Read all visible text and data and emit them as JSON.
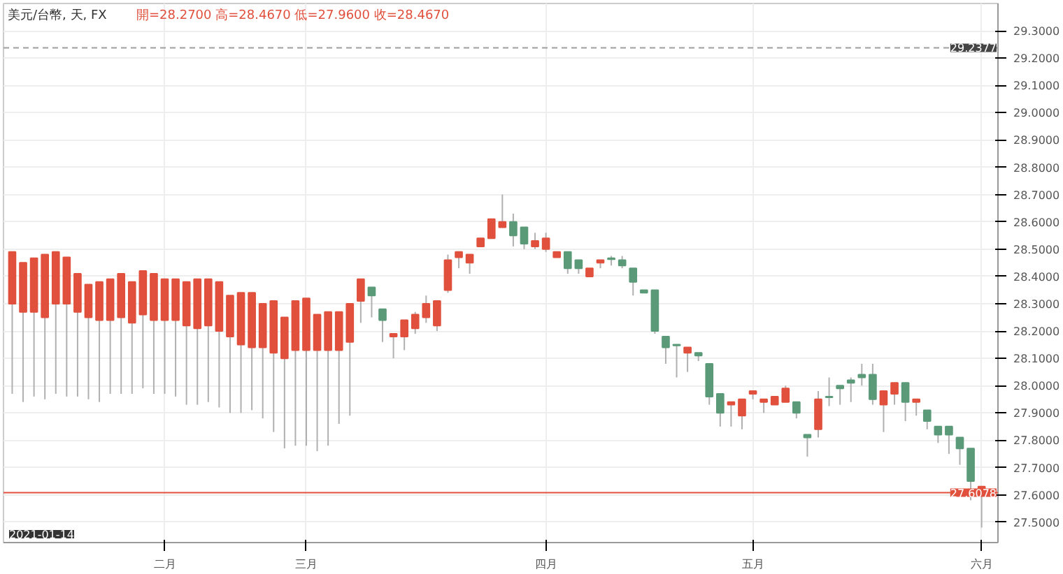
{
  "chart_data": {
    "type": "candlestick",
    "title": "美元/台幣, 天, FX",
    "subtitle": "開=28.2700 高=28.4670 低=27.9600 收=28.4670",
    "annotations": [
      "2021-01-14"
    ],
    "categories": [
      null,
      null,
      null,
      null,
      null,
      null,
      null,
      null,
      null,
      null,
      null,
      null,
      null,
      null,
      "二月",
      null,
      null,
      null,
      null,
      null,
      null,
      null,
      null,
      null,
      null,
      null,
      null,
      "三月",
      null,
      null,
      null,
      null,
      null,
      null,
      null,
      null,
      null,
      null,
      null,
      null,
      null,
      null,
      null,
      null,
      null,
      null,
      null,
      null,
      null,
      "四月",
      null,
      null,
      null,
      null,
      null,
      null,
      null,
      null,
      null,
      null,
      null,
      null,
      null,
      null,
      null,
      null,
      null,
      null,
      "五月",
      null,
      null,
      null,
      null,
      null,
      null,
      null,
      null,
      null,
      null,
      null,
      null,
      null,
      null,
      null,
      null,
      null,
      null,
      null,
      null,
      "六月"
    ],
    "ohlc": [
      [
        28.3,
        28.49,
        27.97,
        28.49
      ],
      [
        28.27,
        28.45,
        27.94,
        28.45
      ],
      [
        28.27,
        28.467,
        27.96,
        28.467
      ],
      [
        28.25,
        28.48,
        27.95,
        28.48
      ],
      [
        28.3,
        28.49,
        27.97,
        28.49
      ],
      [
        28.3,
        28.47,
        27.96,
        28.47
      ],
      [
        28.27,
        28.41,
        27.96,
        28.41
      ],
      [
        28.25,
        28.37,
        27.95,
        28.37
      ],
      [
        28.24,
        28.38,
        27.94,
        28.38
      ],
      [
        28.24,
        28.39,
        27.97,
        28.39
      ],
      [
        28.25,
        28.41,
        27.97,
        28.41
      ],
      [
        28.23,
        28.38,
        27.97,
        28.38
      ],
      [
        28.26,
        28.42,
        27.99,
        28.42
      ],
      [
        28.24,
        28.41,
        27.97,
        28.41
      ],
      [
        28.24,
        28.39,
        27.97,
        28.39
      ],
      [
        28.24,
        28.39,
        27.96,
        28.39
      ],
      [
        28.22,
        28.38,
        27.93,
        28.38
      ],
      [
        28.21,
        28.39,
        27.93,
        28.39
      ],
      [
        28.22,
        28.39,
        27.94,
        28.39
      ],
      [
        28.2,
        28.38,
        27.92,
        28.38
      ],
      [
        28.18,
        28.33,
        27.9,
        28.33
      ],
      [
        28.15,
        28.34,
        27.9,
        28.34
      ],
      [
        28.14,
        28.34,
        27.91,
        28.34
      ],
      [
        28.14,
        28.3,
        27.88,
        28.3
      ],
      [
        28.12,
        28.31,
        27.83,
        28.31
      ],
      [
        28.1,
        28.25,
        27.77,
        28.25
      ],
      [
        28.13,
        28.31,
        27.78,
        28.31
      ],
      [
        28.13,
        28.32,
        27.78,
        28.32
      ],
      [
        28.13,
        28.26,
        27.76,
        28.26
      ],
      [
        28.13,
        28.27,
        27.78,
        28.27
      ],
      [
        28.13,
        28.27,
        27.86,
        28.27
      ],
      [
        28.16,
        28.3,
        27.89,
        28.3
      ],
      [
        28.31,
        28.39,
        28.23,
        28.39
      ],
      [
        28.36,
        28.36,
        28.25,
        28.33
      ],
      [
        28.28,
        28.28,
        28.16,
        28.24
      ],
      [
        28.18,
        28.19,
        28.1,
        28.19
      ],
      [
        28.18,
        28.24,
        28.13,
        28.24
      ],
      [
        28.21,
        28.27,
        28.19,
        28.26
      ],
      [
        28.25,
        28.33,
        28.23,
        28.3
      ],
      [
        28.22,
        28.31,
        28.2,
        28.31
      ],
      [
        28.35,
        28.48,
        28.34,
        28.46
      ],
      [
        28.47,
        28.49,
        28.43,
        28.49
      ],
      [
        28.45,
        28.48,
        28.41,
        28.48
      ],
      [
        28.51,
        28.54,
        28.51,
        28.54
      ],
      [
        28.54,
        28.61,
        28.54,
        28.61
      ],
      [
        28.58,
        28.7,
        28.58,
        28.6
      ],
      [
        28.6,
        28.63,
        28.51,
        28.55
      ],
      [
        28.58,
        28.58,
        28.5,
        28.52
      ],
      [
        28.51,
        28.56,
        28.5,
        28.53
      ],
      [
        28.5,
        28.56,
        28.49,
        28.54
      ],
      [
        28.47,
        28.49,
        28.47,
        28.49
      ],
      [
        28.49,
        28.49,
        28.41,
        28.43
      ],
      [
        28.46,
        28.46,
        28.41,
        28.43
      ],
      [
        28.4,
        28.43,
        28.4,
        28.43
      ],
      [
        28.45,
        28.46,
        28.43,
        28.46
      ],
      [
        28.467,
        28.475,
        28.44,
        28.463
      ],
      [
        28.46,
        28.475,
        28.43,
        28.44
      ],
      [
        28.43,
        28.43,
        28.33,
        28.38
      ],
      [
        28.35,
        28.35,
        28.34,
        28.34
      ],
      [
        28.35,
        28.35,
        28.19,
        28.2
      ],
      [
        28.18,
        28.18,
        28.08,
        28.14
      ],
      [
        28.15,
        28.15,
        28.03,
        28.147
      ],
      [
        28.12,
        28.14,
        28.05,
        28.14
      ],
      [
        28.12,
        28.12,
        28.09,
        28.11
      ],
      [
        28.08,
        28.08,
        27.93,
        27.96
      ],
      [
        27.97,
        27.97,
        27.85,
        27.9
      ],
      [
        27.93,
        27.94,
        27.85,
        27.94
      ],
      [
        27.89,
        27.95,
        27.84,
        27.95
      ],
      [
        27.97,
        27.98,
        27.95,
        27.98
      ],
      [
        27.94,
        27.95,
        27.9,
        27.95
      ],
      [
        27.93,
        27.96,
        27.93,
        27.96
      ],
      [
        27.94,
        28.0,
        27.94,
        27.99
      ],
      [
        27.94,
        27.94,
        27.88,
        27.9
      ],
      [
        27.82,
        27.82,
        27.74,
        27.81
      ],
      [
        27.84,
        27.98,
        27.81,
        27.95
      ],
      [
        27.96,
        28.03,
        27.925,
        27.957
      ],
      [
        28.0,
        28.0,
        27.93,
        27.99
      ],
      [
        28.02,
        28.03,
        27.94,
        28.01
      ],
      [
        28.04,
        28.08,
        28.0,
        28.03
      ],
      [
        28.04,
        28.08,
        27.93,
        27.95
      ],
      [
        27.93,
        27.98,
        27.83,
        27.98
      ],
      [
        27.97,
        28.01,
        27.93,
        28.01
      ],
      [
        28.01,
        28.01,
        27.87,
        27.94
      ],
      [
        27.94,
        27.95,
        27.89,
        27.95
      ],
      [
        27.91,
        27.91,
        27.84,
        27.87
      ],
      [
        27.85,
        27.85,
        27.79,
        27.82
      ],
      [
        27.85,
        27.85,
        27.75,
        27.82
      ],
      [
        27.81,
        27.81,
        27.71,
        27.77
      ],
      [
        27.77,
        27.77,
        27.58,
        27.65
      ],
      [
        27.61,
        27.63,
        27.48,
        27.63
      ]
    ],
    "colors": [
      "#e0503c",
      "#e0503c",
      "#e0503c",
      "#e0503c",
      "#e0503c",
      "#e0503c",
      "#e0503c",
      "#e0503c",
      "#e0503c",
      "#e0503c",
      "#e0503c",
      "#e0503c",
      "#e0503c",
      "#e0503c",
      "#e0503c",
      "#e0503c",
      "#e0503c",
      "#e0503c",
      "#e0503c",
      "#e0503c",
      "#e0503c",
      "#e0503c",
      "#e0503c",
      "#e0503c",
      "#e0503c",
      "#e0503c",
      "#e0503c",
      "#e0503c",
      "#e0503c",
      "#e0503c",
      "#e0503c",
      "#e0503c",
      "#e0503c",
      "#5b9a78",
      "#5b9a78",
      "#e0503c",
      "#e0503c",
      "#e0503c",
      "#e0503c",
      "#e0503c",
      "#e0503c",
      "#e0503c",
      "#e0503c",
      "#e0503c",
      "#e0503c",
      "#e0503c",
      "#5b9a78",
      "#5b9a78",
      "#e0503c",
      "#e0503c",
      "#e0503c",
      "#5b9a78",
      "#5b9a78",
      "#e0503c",
      "#e0503c",
      "#5b9a78",
      "#5b9a78",
      "#5b9a78",
      "#5b9a78",
      "#5b9a78",
      "#5b9a78",
      "#5b9a78",
      "#e0503c",
      "#5b9a78",
      "#5b9a78",
      "#5b9a78",
      "#e0503c",
      "#e0503c",
      "#e0503c",
      "#e0503c",
      "#e0503c",
      "#e0503c",
      "#5b9a78",
      "#5b9a78",
      "#e0503c",
      "#5b9a78",
      "#5b9a78",
      "#5b9a78",
      "#5b9a78",
      "#5b9a78",
      "#e0503c",
      "#e0503c",
      "#5b9a78",
      "#e0503c",
      "#5b9a78",
      "#5b9a78",
      "#5b9a78",
      "#5b9a78",
      "#5b9a78",
      "#e0503c"
    ],
    "ylim": [
      27.425,
      29.4
    ],
    "yticks": [
      {
        "value": 27.5,
        "label": "27.5000"
      },
      {
        "value": 27.6,
        "label": "27.6000"
      },
      {
        "value": 27.7,
        "label": "27.7000"
      },
      {
        "value": 27.8,
        "label": "27.8000"
      },
      {
        "value": 27.9,
        "label": "27.9000"
      },
      {
        "value": 28.0,
        "label": "28.0000"
      },
      {
        "value": 28.1,
        "label": "28.1000"
      },
      {
        "value": 28.2,
        "label": "28.2000"
      },
      {
        "value": 28.3,
        "label": "28.3000"
      },
      {
        "value": 28.4,
        "label": "28.4000"
      },
      {
        "value": 28.5,
        "label": "28.5000"
      },
      {
        "value": 28.6,
        "label": "28.6000"
      },
      {
        "value": 28.7,
        "label": "28.7000"
      },
      {
        "value": 28.8,
        "label": "28.8000"
      },
      {
        "value": 28.9,
        "label": "28.9000"
      },
      {
        "value": 29.0,
        "label": "29.0000"
      },
      {
        "value": 29.1,
        "label": "29.1000"
      },
      {
        "value": 29.2,
        "label": "29.2000"
      },
      {
        "value": 29.3,
        "label": "29.3000"
      }
    ],
    "ref_lines": [
      {
        "axis": "y",
        "value": 29.2377,
        "label": "29.2377",
        "color": "#9e9e9e",
        "line_style": "dashed"
      },
      {
        "axis": "y",
        "value": 27.6078,
        "label": "27.6078",
        "color": "#e0503c",
        "line_style": "solid"
      }
    ],
    "grid": true
  }
}
